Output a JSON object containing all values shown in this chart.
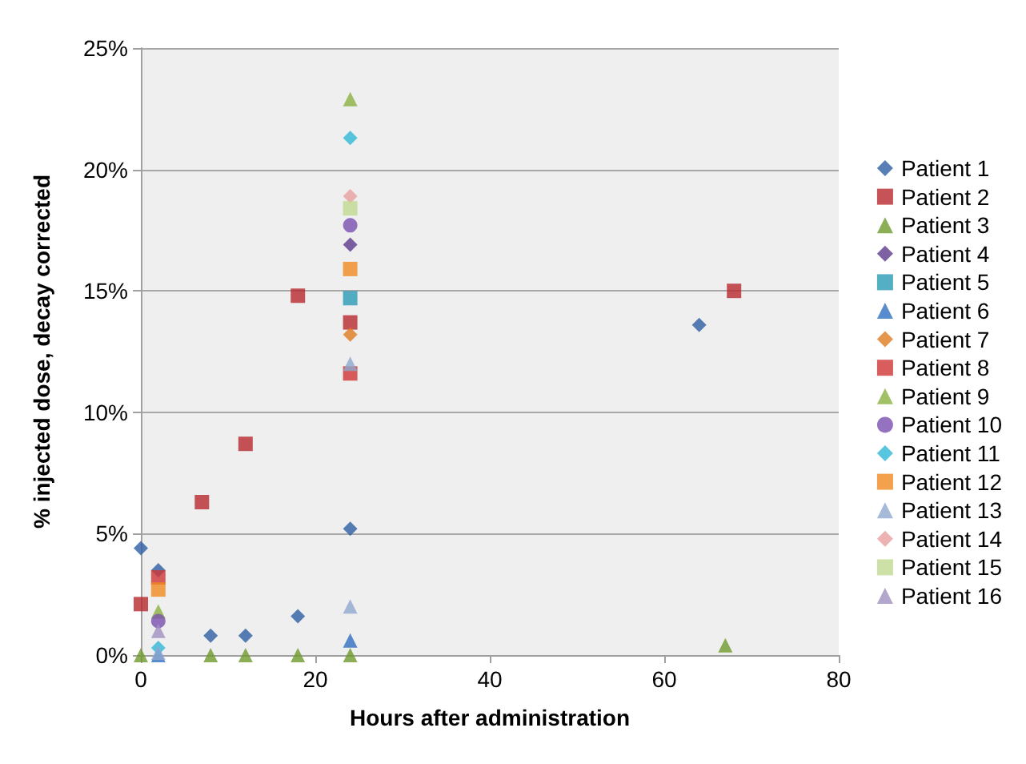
{
  "chart_data": {
    "type": "scatter",
    "xlabel": "Hours after administration",
    "ylabel": "% injected dose, decay corrected",
    "xlim": [
      0,
      80
    ],
    "xticks": [
      0,
      20,
      40,
      60,
      80
    ],
    "ylim": [
      0,
      25
    ],
    "yticks": [
      {
        "value": 0,
        "label": "0%"
      },
      {
        "value": 5,
        "label": "5%"
      },
      {
        "value": 10,
        "label": "10%"
      },
      {
        "value": 15,
        "label": "15%"
      },
      {
        "value": 20,
        "label": "20%"
      },
      {
        "value": 25,
        "label": "25%"
      }
    ],
    "grid": "y",
    "legend": "right",
    "series": [
      {
        "name": "Patient 1",
        "color": "#2e5fa3",
        "marker": "diamond",
        "x": [
          0,
          2,
          8,
          12,
          18,
          24,
          64
        ],
        "values": [
          4.4,
          3.5,
          0.8,
          0.8,
          1.6,
          5.2,
          13.6
        ]
      },
      {
        "name": "Patient 2",
        "color": "#b8282d",
        "marker": "square",
        "x": [
          0,
          7,
          12,
          18,
          24,
          68
        ],
        "values": [
          2.1,
          6.3,
          8.7,
          14.8,
          13.7,
          15.0
        ]
      },
      {
        "name": "Patient 3",
        "color": "#6f9a2c",
        "marker": "triangle",
        "x": [
          0,
          8,
          12,
          18,
          24,
          67
        ],
        "values": [
          0,
          0,
          0,
          0,
          0,
          0.4
        ]
      },
      {
        "name": "Patient 4",
        "color": "#5e3a8c",
        "marker": "diamond",
        "x": [
          24
        ],
        "values": [
          16.9
        ]
      },
      {
        "name": "Patient 5",
        "color": "#2a9bb5",
        "marker": "square",
        "x": [
          24
        ],
        "values": [
          14.7
        ]
      },
      {
        "name": "Patient 6",
        "color": "#2f6fc0",
        "marker": "triangle",
        "x": [
          2,
          24
        ],
        "values": [
          0,
          0.6
        ]
      },
      {
        "name": "Patient 7",
        "color": "#e07b20",
        "marker": "diamond",
        "x": [
          24
        ],
        "values": [
          13.2
        ]
      },
      {
        "name": "Patient 8",
        "color": "#d03535",
        "marker": "square",
        "x": [
          2,
          24
        ],
        "values": [
          3.2,
          11.6
        ]
      },
      {
        "name": "Patient 9",
        "color": "#8bb040",
        "marker": "triangle",
        "x": [
          2,
          24
        ],
        "values": [
          1.8,
          22.9
        ]
      },
      {
        "name": "Patient 10",
        "color": "#7b4fb0",
        "marker": "circle",
        "x": [
          2,
          24
        ],
        "values": [
          1.4,
          17.7
        ]
      },
      {
        "name": "Patient 11",
        "color": "#30b8d8",
        "marker": "diamond",
        "x": [
          2,
          24
        ],
        "values": [
          0.3,
          21.3
        ]
      },
      {
        "name": "Patient 12",
        "color": "#f08a20",
        "marker": "square",
        "x": [
          2,
          24
        ],
        "values": [
          2.7,
          15.9
        ]
      },
      {
        "name": "Patient 13",
        "color": "#8fa8d0",
        "marker": "triangle",
        "x": [
          2,
          24,
          24
        ],
        "values": [
          0.1,
          2.0,
          12.0
        ]
      },
      {
        "name": "Patient 14",
        "color": "#e8a0a0",
        "marker": "diamond",
        "x": [
          24
        ],
        "values": [
          18.9
        ]
      },
      {
        "name": "Patient 15",
        "color": "#c0d890",
        "marker": "square",
        "x": [
          24
        ],
        "values": [
          18.4
        ]
      },
      {
        "name": "Patient 16",
        "color": "#a090c0",
        "marker": "triangle",
        "x": [
          2
        ],
        "values": [
          1.0
        ]
      }
    ]
  }
}
